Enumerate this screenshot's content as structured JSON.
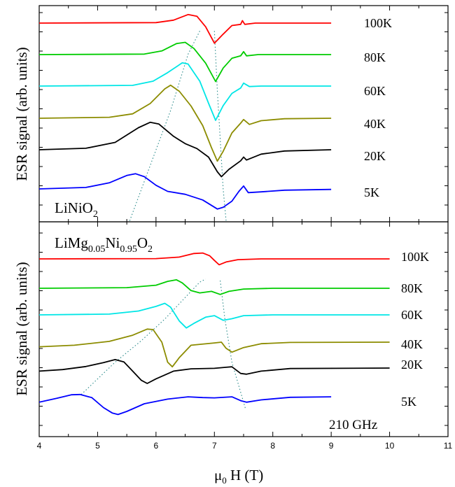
{
  "chart_data": [
    {
      "type": "line",
      "sample_label": "LiNiO",
      "sample_sub": "2",
      "ylabel": "ESR signal (arb. units)",
      "xlim": [
        4,
        11
      ],
      "series": [
        {
          "name": "100K",
          "color": "#ff0000",
          "points": [
            [
              4,
              0
            ],
            [
              6.0,
              0.02
            ],
            [
              6.3,
              0.12
            ],
            [
              6.55,
              0.35
            ],
            [
              6.7,
              0.28
            ],
            [
              6.85,
              -0.15
            ],
            [
              7.0,
              -0.82
            ],
            [
              7.15,
              -0.45
            ],
            [
              7.3,
              -0.1
            ],
            [
              7.45,
              -0.05
            ],
            [
              7.48,
              0.1
            ],
            [
              7.52,
              -0.05
            ],
            [
              7.7,
              0
            ],
            [
              9,
              0
            ]
          ]
        },
        {
          "name": "80K",
          "color": "#00cc00",
          "points": [
            [
              4,
              0
            ],
            [
              5.8,
              0.02
            ],
            [
              6.1,
              0.15
            ],
            [
              6.35,
              0.45
            ],
            [
              6.5,
              0.5
            ],
            [
              6.65,
              0.25
            ],
            [
              6.85,
              -0.35
            ],
            [
              7.02,
              -1.1
            ],
            [
              7.15,
              -0.55
            ],
            [
              7.3,
              -0.15
            ],
            [
              7.45,
              -0.05
            ],
            [
              7.5,
              0.12
            ],
            [
              7.55,
              -0.05
            ],
            [
              7.75,
              0
            ],
            [
              9,
              0
            ]
          ]
        },
        {
          "name": "60K",
          "color": "#00e6e6",
          "points": [
            [
              4,
              0
            ],
            [
              5.6,
              0.03
            ],
            [
              5.95,
              0.2
            ],
            [
              6.2,
              0.55
            ],
            [
              6.45,
              0.95
            ],
            [
              6.55,
              0.9
            ],
            [
              6.75,
              0.2
            ],
            [
              6.9,
              -0.7
            ],
            [
              7.02,
              -1.4
            ],
            [
              7.15,
              -0.8
            ],
            [
              7.3,
              -0.3
            ],
            [
              7.45,
              -0.08
            ],
            [
              7.5,
              0.12
            ],
            [
              7.6,
              -0.02
            ],
            [
              7.8,
              0
            ],
            [
              9,
              0
            ]
          ]
        },
        {
          "name": "40K",
          "color": "#8c8c00",
          "points": [
            [
              4,
              0
            ],
            [
              5.2,
              0.04
            ],
            [
              5.6,
              0.18
            ],
            [
              5.9,
              0.6
            ],
            [
              6.15,
              1.2
            ],
            [
              6.25,
              1.35
            ],
            [
              6.4,
              1.1
            ],
            [
              6.6,
              0.5
            ],
            [
              6.8,
              -0.3
            ],
            [
              6.95,
              -1.2
            ],
            [
              7.05,
              -1.75
            ],
            [
              7.15,
              -1.35
            ],
            [
              7.3,
              -0.6
            ],
            [
              7.45,
              -0.2
            ],
            [
              7.5,
              -0.05
            ],
            [
              7.6,
              -0.25
            ],
            [
              7.8,
              -0.1
            ],
            [
              8.2,
              -0.02
            ],
            [
              9,
              0
            ]
          ]
        },
        {
          "name": "20K",
          "color": "#000000",
          "points": [
            [
              4,
              0
            ],
            [
              4.8,
              0.06
            ],
            [
              5.3,
              0.3
            ],
            [
              5.7,
              0.9
            ],
            [
              5.9,
              1.12
            ],
            [
              6.05,
              1.05
            ],
            [
              6.3,
              0.55
            ],
            [
              6.5,
              0.25
            ],
            [
              6.7,
              0.05
            ],
            [
              6.9,
              -0.3
            ],
            [
              7.05,
              -0.9
            ],
            [
              7.12,
              -1.1
            ],
            [
              7.25,
              -0.8
            ],
            [
              7.45,
              -0.45
            ],
            [
              7.5,
              -0.3
            ],
            [
              7.55,
              -0.42
            ],
            [
              7.8,
              -0.18
            ],
            [
              8.2,
              -0.05
            ],
            [
              9,
              0
            ]
          ]
        },
        {
          "name": "5K",
          "color": "#0000ff",
          "points": [
            [
              4,
              0
            ],
            [
              4.8,
              0.06
            ],
            [
              5.2,
              0.25
            ],
            [
              5.5,
              0.55
            ],
            [
              5.65,
              0.62
            ],
            [
              5.8,
              0.5
            ],
            [
              6.0,
              0.15
            ],
            [
              6.2,
              -0.1
            ],
            [
              6.5,
              -0.22
            ],
            [
              6.8,
              -0.45
            ],
            [
              7.05,
              -0.82
            ],
            [
              7.15,
              -0.75
            ],
            [
              7.3,
              -0.5
            ],
            [
              7.42,
              -0.1
            ],
            [
              7.5,
              0.12
            ],
            [
              7.58,
              -0.15
            ],
            [
              7.8,
              -0.12
            ],
            [
              8.2,
              -0.05
            ],
            [
              9,
              -0.02
            ]
          ]
        }
      ],
      "guides": [
        [
          [
            5.55,
            -1.3
          ],
          [
            6.25,
            3.2
          ],
          [
            6.55,
            5.5
          ],
          [
            6.75,
            6.45
          ]
        ],
        [
          [
            7.0,
            6.45
          ],
          [
            7.05,
            4.0
          ],
          [
            7.15,
            0.0
          ],
          [
            7.2,
            -1.3
          ]
        ]
      ]
    },
    {
      "type": "line",
      "sample_label_parts": [
        {
          "t": "LiMg",
          "sub": false
        },
        {
          "t": "0.05",
          "sub": true
        },
        {
          "t": "Ni",
          "sub": false
        },
        {
          "t": "0.95",
          "sub": true
        },
        {
          "t": "O",
          "sub": false
        },
        {
          "t": "2",
          "sub": true
        }
      ],
      "ylabel": "ESR signal (arb. units)",
      "frequency_label": "210 GHz",
      "xlabel_mu": "μ",
      "xlabel_sub": "0",
      "xlabel_rest": " H  (T)",
      "xlim": [
        4,
        11
      ],
      "xticks": [
        "4",
        "5",
        "6",
        "7",
        "8",
        "9",
        "10",
        "11"
      ],
      "series": [
        {
          "name": "100K",
          "color": "#ff0000",
          "points": [
            [
              4,
              0
            ],
            [
              6.0,
              0.02
            ],
            [
              6.4,
              0.12
            ],
            [
              6.65,
              0.35
            ],
            [
              6.8,
              0.38
            ],
            [
              6.92,
              0.2
            ],
            [
              7.0,
              -0.1
            ],
            [
              7.08,
              -0.38
            ],
            [
              7.2,
              -0.2
            ],
            [
              7.4,
              -0.05
            ],
            [
              7.8,
              0
            ],
            [
              10,
              0
            ]
          ]
        },
        {
          "name": "80K",
          "color": "#00cc00",
          "points": [
            [
              4,
              0
            ],
            [
              5.5,
              0.04
            ],
            [
              6.0,
              0.2
            ],
            [
              6.2,
              0.45
            ],
            [
              6.35,
              0.55
            ],
            [
              6.45,
              0.35
            ],
            [
              6.6,
              -0.15
            ],
            [
              6.75,
              -0.3
            ],
            [
              6.95,
              -0.2
            ],
            [
              7.1,
              -0.4
            ],
            [
              7.25,
              -0.2
            ],
            [
              7.5,
              -0.05
            ],
            [
              8,
              0
            ],
            [
              10,
              0
            ]
          ]
        },
        {
          "name": "60K",
          "color": "#00e6e6",
          "points": [
            [
              4,
              0
            ],
            [
              5.2,
              0.05
            ],
            [
              5.7,
              0.25
            ],
            [
              6.0,
              0.55
            ],
            [
              6.15,
              0.75
            ],
            [
              6.25,
              0.5
            ],
            [
              6.4,
              -0.4
            ],
            [
              6.52,
              -0.85
            ],
            [
              6.65,
              -0.55
            ],
            [
              6.85,
              -0.15
            ],
            [
              7.0,
              -0.05
            ],
            [
              7.15,
              -0.35
            ],
            [
              7.3,
              -0.25
            ],
            [
              7.5,
              -0.05
            ],
            [
              8,
              0
            ],
            [
              10,
              0
            ]
          ]
        },
        {
          "name": "40K",
          "color": "#8c8c00",
          "points": [
            [
              4,
              -0.3
            ],
            [
              4.6,
              -0.2
            ],
            [
              5.2,
              0.05
            ],
            [
              5.6,
              0.45
            ],
            [
              5.85,
              0.85
            ],
            [
              5.95,
              0.82
            ],
            [
              6.1,
              0.0
            ],
            [
              6.2,
              -1.3
            ],
            [
              6.28,
              -1.6
            ],
            [
              6.4,
              -1.0
            ],
            [
              6.6,
              -0.2
            ],
            [
              7.0,
              -0.05
            ],
            [
              7.12,
              0.0
            ],
            [
              7.2,
              -0.4
            ],
            [
              7.3,
              -0.65
            ],
            [
              7.5,
              -0.35
            ],
            [
              7.8,
              -0.1
            ],
            [
              8.3,
              -0.02
            ],
            [
              10,
              0
            ]
          ]
        },
        {
          "name": "20K",
          "color": "#000000",
          "points": [
            [
              4,
              -0.2
            ],
            [
              4.4,
              -0.1
            ],
            [
              4.8,
              0.1
            ],
            [
              5.1,
              0.35
            ],
            [
              5.3,
              0.55
            ],
            [
              5.45,
              0.4
            ],
            [
              5.6,
              -0.2
            ],
            [
              5.75,
              -0.8
            ],
            [
              5.85,
              -1.0
            ],
            [
              6.0,
              -0.7
            ],
            [
              6.3,
              -0.2
            ],
            [
              6.6,
              -0.05
            ],
            [
              7.0,
              -0.02
            ],
            [
              7.2,
              0.05
            ],
            [
              7.3,
              0.08
            ],
            [
              7.45,
              -0.35
            ],
            [
              7.55,
              -0.4
            ],
            [
              7.8,
              -0.2
            ],
            [
              8.3,
              -0.03
            ],
            [
              10,
              0
            ]
          ]
        },
        {
          "name": "5K",
          "color": "#0000ff",
          "points": [
            [
              4,
              -0.4
            ],
            [
              4.3,
              -0.15
            ],
            [
              4.55,
              0.08
            ],
            [
              4.7,
              0.1
            ],
            [
              4.9,
              -0.1
            ],
            [
              5.1,
              -0.75
            ],
            [
              5.25,
              -1.1
            ],
            [
              5.35,
              -1.2
            ],
            [
              5.5,
              -1.0
            ],
            [
              5.8,
              -0.5
            ],
            [
              6.2,
              -0.2
            ],
            [
              6.55,
              -0.05
            ],
            [
              6.8,
              -0.1
            ],
            [
              7.0,
              -0.12
            ],
            [
              7.3,
              -0.05
            ],
            [
              7.45,
              -0.3
            ],
            [
              7.55,
              -0.4
            ],
            [
              7.8,
              -0.25
            ],
            [
              8.3,
              -0.08
            ],
            [
              9,
              -0.05
            ]
          ]
        }
      ],
      "guides": [
        [
          [
            4.72,
            0.1
          ],
          [
            5.3,
            2.2
          ],
          [
            5.75,
            3.6
          ],
          [
            6.15,
            5.0
          ],
          [
            6.75,
            7.4
          ],
          [
            6.85,
            7.6
          ]
        ],
        [
          [
            7.1,
            7.5
          ],
          [
            7.18,
            5.0
          ],
          [
            7.3,
            2.2
          ],
          [
            7.53,
            -0.8
          ]
        ]
      ]
    }
  ]
}
